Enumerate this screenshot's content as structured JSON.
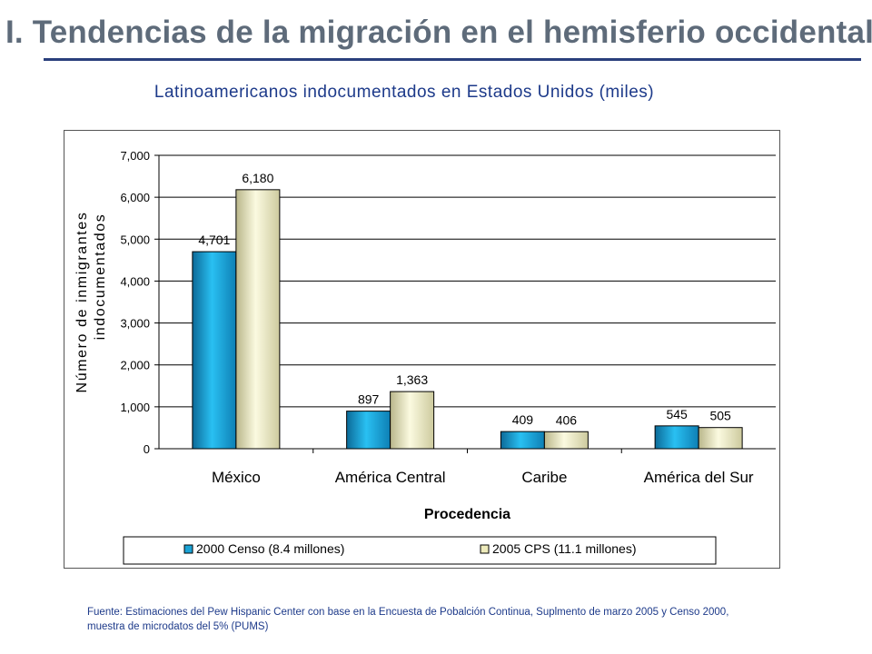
{
  "slide": {
    "title": "I. Tendencias de la migración en el hemisferio occidental",
    "chart_heading": "Latinoamericanos indocumentados en Estados Unidos (miles)",
    "source_line1": "Fuente: Estimaciones del Pew Hispanic Center con base en la Encuesta de Pobalción Continua, Suplmento de marzo 2005 y Censo 2000,",
    "source_line2": "muestra de microdatos del 5% (PUMS)"
  },
  "colors": {
    "series_2000": "#1ba3d6",
    "series_2005": "#eeebbb",
    "title": "#5e6b7a",
    "accent": "#1d3a8a"
  },
  "chart_data": {
    "type": "bar",
    "title": "Latinoamericanos indocumentados en Estados Unidos (miles)",
    "xlabel": "Procedencia",
    "ylabel_lines": [
      "Número de inmigrantes",
      "indocumentados"
    ],
    "categories": [
      "México",
      "América Central",
      "Caribe",
      "América del Sur"
    ],
    "series": [
      {
        "name": "2000 Censo (8.4 millones)",
        "values": [
          4701,
          897,
          409,
          545
        ],
        "labels": [
          "4,701",
          "897",
          "409",
          "545"
        ]
      },
      {
        "name": "2005 CPS (11.1 millones)",
        "values": [
          6180,
          1363,
          406,
          505
        ],
        "labels": [
          "6,180",
          "1,363",
          "406",
          "505"
        ]
      }
    ],
    "ylim": [
      0,
      7000
    ],
    "yticks": [
      0,
      1000,
      2000,
      3000,
      4000,
      5000,
      6000,
      7000
    ],
    "ytick_labels": [
      "0",
      "1,000",
      "2,000",
      "3,000",
      "4,000",
      "5,000",
      "6,000",
      "7,000"
    ],
    "grid": true,
    "legend": "bottom"
  }
}
